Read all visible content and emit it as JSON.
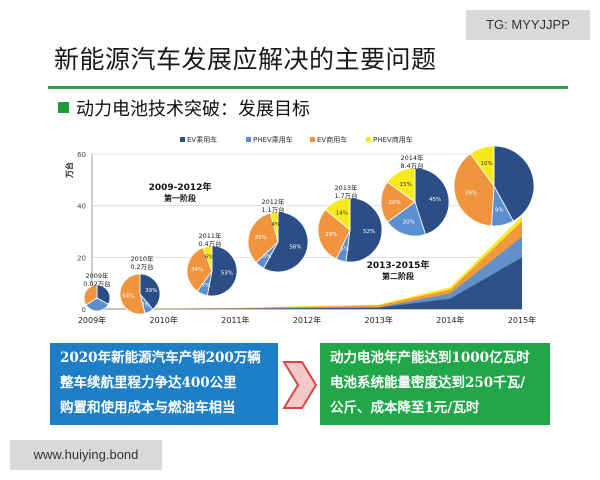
{
  "watermarks": {
    "top_right": "TG: MYYJJPP",
    "bottom_left": "www.huiying.bond"
  },
  "slide": {
    "title": "新能源汽车发展应解决的主要问题",
    "subtitle": "动力电池技术突破：发展目标"
  },
  "colors": {
    "ev_passenger": "#2c4e86",
    "phev_passenger": "#5b8fd0",
    "ev_commercial": "#f0953e",
    "phev_commercial": "#f6ea1c",
    "accent_green": "#2e9a46"
  },
  "chart_data": {
    "type": "area",
    "title": "",
    "ylabel": "万台",
    "ylim": [
      0,
      60
    ],
    "yticks": [
      "0",
      "20",
      "40",
      "60"
    ],
    "categories": [
      "2009年",
      "2010年",
      "2011年",
      "2012年",
      "2013年",
      "2014年",
      "2015年"
    ],
    "legend": [
      "EV乘用车",
      "PHEV乘用车",
      "EV商用车",
      "PHEV商用车"
    ],
    "legend_position": "top",
    "phase_labels": [
      {
        "text": "2009-2012年",
        "sub": "第一阶段"
      },
      {
        "text": "2013-2015年",
        "sub": "第二阶段"
      }
    ],
    "annotations": [
      {
        "year": "2009年",
        "text": "0.02万台"
      },
      {
        "year": "2010年",
        "text": "0.2万台"
      },
      {
        "year": "2011年",
        "text": "0.4万台"
      },
      {
        "year": "2012年",
        "text": "1.1万台"
      },
      {
        "year": "2013年",
        "text": "1.7万台"
      },
      {
        "year": "2014年",
        "text": "8.4万台"
      }
    ],
    "pies": [
      {
        "year": "2009年",
        "slices": [
          33,
          33,
          34,
          0
        ]
      },
      {
        "year": "2010年",
        "slices": [
          39,
          7,
          54,
          0
        ]
      },
      {
        "year": "2011年",
        "slices": [
          53,
          7,
          34,
          6
        ]
      },
      {
        "year": "2012年",
        "slices": [
          58,
          5,
          33,
          4
        ]
      },
      {
        "year": "2013年",
        "slices": [
          52,
          5,
          29,
          14
        ]
      },
      {
        "year": "2014年",
        "slices": [
          45,
          20,
          20,
          15
        ]
      },
      {
        "year": "2015年",
        "slices": [
          42,
          9,
          39,
          10
        ]
      }
    ],
    "pie_labels": [
      [
        "",
        "",
        "",
        ""
      ],
      [
        "39%",
        "7%",
        "54%",
        ""
      ],
      [
        "53%",
        "7%",
        "34%",
        "6%"
      ],
      [
        "58%",
        "5%",
        "33%",
        "4%"
      ],
      [
        "52%",
        "5%",
        "29%",
        "14%"
      ],
      [
        "45%",
        "20%",
        "20%",
        "15%"
      ],
      [
        "",
        "9%",
        "39%",
        "10%"
      ]
    ],
    "series": [
      {
        "name": "EV乘用车",
        "values": [
          0.01,
          0.05,
          0.1,
          0.3,
          0.5,
          4,
          20
        ]
      },
      {
        "name": "PHEV乘用车",
        "values": [
          0.0,
          0.01,
          0.02,
          0.05,
          0.1,
          2,
          8
        ]
      },
      {
        "name": "EV商用车",
        "values": [
          0.01,
          0.1,
          0.2,
          0.5,
          0.8,
          1.5,
          6
        ]
      },
      {
        "name": "PHEV商用车",
        "values": [
          0.0,
          0.04,
          0.08,
          0.25,
          0.3,
          0.9,
          2
        ]
      }
    ]
  },
  "box_left": {
    "lines": [
      "2020年新能源汽车产销200万辆",
      "整车续航里程力争达400公里",
      "购置和使用成本与燃油车相当"
    ]
  },
  "box_right": {
    "lines": [
      "动力电池年产能达到1000亿瓦时",
      "电池系统能量密度达到250千瓦/",
      "公斤、成本降至1元/瓦时"
    ]
  }
}
